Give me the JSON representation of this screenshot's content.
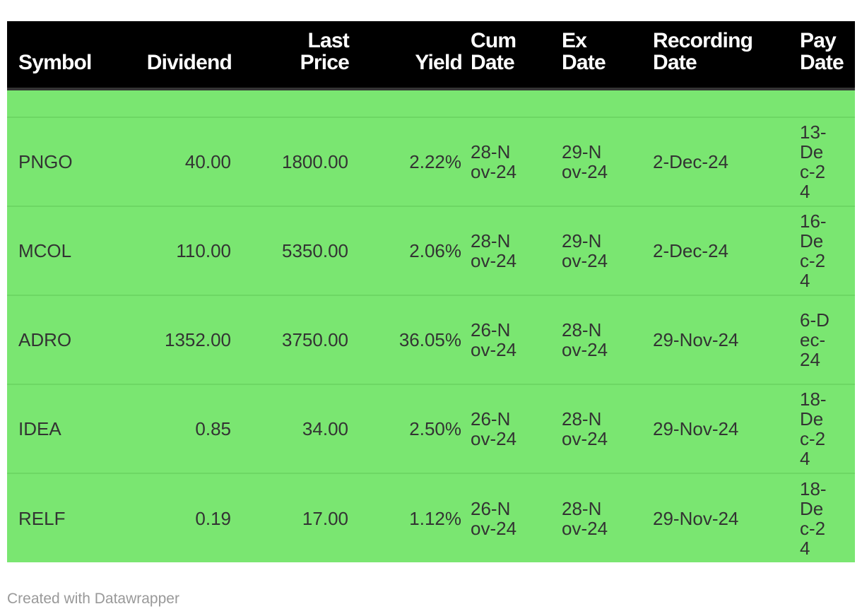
{
  "chart_data": {
    "type": "table",
    "columns": [
      "Symbol",
      "Dividend",
      "Last Price",
      "Yield",
      "Cum Date",
      "Ex Date",
      "Recording Date",
      "Pay Date"
    ],
    "rows": [
      {
        "symbol": "PNGO",
        "dividend": "40.00",
        "last_price": "1800.00",
        "yield": "2.22%",
        "cum_date": "28-Nov-24",
        "ex_date": "29-Nov-24",
        "recording_date": "2-Dec-24",
        "pay_date": "13-Dec-24"
      },
      {
        "symbol": "MCOL",
        "dividend": "110.00",
        "last_price": "5350.00",
        "yield": "2.06%",
        "cum_date": "28-Nov-24",
        "ex_date": "29-Nov-24",
        "recording_date": "2-Dec-24",
        "pay_date": "16-Dec-24"
      },
      {
        "symbol": "ADRO",
        "dividend": "1352.00",
        "last_price": "3750.00",
        "yield": "36.05%",
        "cum_date": "26-Nov-24",
        "ex_date": "28-Nov-24",
        "recording_date": "29-Nov-24",
        "pay_date": "6-Dec-24"
      },
      {
        "symbol": "IDEA",
        "dividend": "0.85",
        "last_price": "34.00",
        "yield": "2.50%",
        "cum_date": "26-Nov-24",
        "ex_date": "28-Nov-24",
        "recording_date": "29-Nov-24",
        "pay_date": "18-Dec-24"
      },
      {
        "symbol": "RELF",
        "dividend": "0.19",
        "last_price": "17.00",
        "yield": "1.12%",
        "cum_date": "26-Nov-24",
        "ex_date": "28-Nov-24",
        "recording_date": "29-Nov-24",
        "pay_date": "18-Dec-24"
      }
    ]
  },
  "colors": {
    "header_bg": "#000000",
    "header_text": "#ffffff",
    "row_bg": "#7ae671",
    "body_text": "#333333",
    "credit_text": "#999999"
  },
  "footer": {
    "credit": "Created with Datawrapper"
  }
}
